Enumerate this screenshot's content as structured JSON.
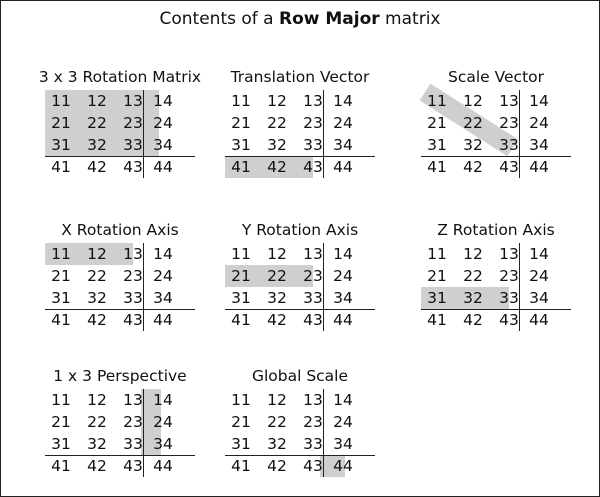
{
  "title": {
    "prefix": "Contents of a ",
    "bold": "Row Major",
    "suffix": " matrix"
  },
  "matrix": [
    [
      "11",
      "12",
      "13",
      "14"
    ],
    [
      "21",
      "22",
      "23",
      "24"
    ],
    [
      "31",
      "32",
      "33",
      "34"
    ],
    [
      "41",
      "42",
      "43",
      "44"
    ]
  ],
  "highlight_color": "#cfcfcf",
  "panels": [
    {
      "id": "rotation-matrix",
      "title": "3 x 3 Rotation Matrix",
      "highlight": "rows0to2-cols0to2"
    },
    {
      "id": "translation-vector",
      "title": "Translation Vector",
      "highlight": "row3-cols0to2"
    },
    {
      "id": "scale-vector",
      "title": "Scale Vector",
      "highlight": "diagonal-11-22-33"
    },
    {
      "id": "x-rotation-axis",
      "title": "X Rotation Axis",
      "highlight": "row0-cols0to2"
    },
    {
      "id": "y-rotation-axis",
      "title": "Y Rotation Axis",
      "highlight": "row1-cols0to2"
    },
    {
      "id": "z-rotation-axis",
      "title": "Z Rotation Axis",
      "highlight": "row2-cols0to2"
    },
    {
      "id": "perspective",
      "title": "1 x 3 Perspective",
      "highlight": "col3-rows0to2"
    },
    {
      "id": "global-scale",
      "title": "Global Scale",
      "highlight": "cell-44"
    }
  ]
}
